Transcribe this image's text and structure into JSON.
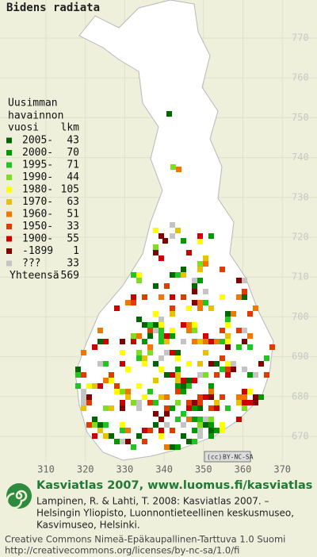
{
  "title": "Bidens radiata",
  "legend": {
    "header": [
      "Uusimman",
      "havainnon",
      "vuosi"
    ],
    "count_header": "lkm",
    "rows": [
      {
        "label": "2005-",
        "count": 43,
        "color": "#006600"
      },
      {
        "label": "2000-",
        "count": 70,
        "color": "#009900"
      },
      {
        "label": "1995-",
        "count": 71,
        "color": "#22c422"
      },
      {
        "label": "1990-",
        "count": 44,
        "color": "#7fdd22"
      },
      {
        "label": "1980-",
        "count": 105,
        "color": "#ffff00"
      },
      {
        "label": "1970-",
        "count": 63,
        "color": "#e8c200"
      },
      {
        "label": "1960-",
        "count": 51,
        "color": "#f07800"
      },
      {
        "label": "1950-",
        "count": 33,
        "color": "#e03c00"
      },
      {
        "label": "1900-",
        "count": 55,
        "color": "#cc0000"
      },
      {
        "label": "-1899",
        "count": 1,
        "color": "#800000"
      },
      {
        "label": "???",
        "count": 33,
        "color": "#c4c4c4"
      }
    ],
    "total_label": "Yhteensä",
    "total": 569
  },
  "map": {
    "yticks": [
      770,
      760,
      750,
      740,
      730,
      720,
      710,
      700,
      690,
      680,
      670
    ],
    "xticks": [
      310,
      320,
      330,
      340,
      350,
      360,
      370
    ]
  },
  "badge": {
    "cc": "(cc)",
    "license": "BY-NC-SA"
  },
  "footer": {
    "heading": "Kasviatlas 2007, www.luomus.fi/kasviatlas",
    "citation": [
      "Lampinen, R. & Lahti, T. 2008: Kasviatlas 2007. –",
      "Helsingin Yliopisto, Luonnontieteellinen keskusmuseo,",
      "Kasvimuseo, Helsinki."
    ],
    "license": [
      "Creative Commons Nimeä-Epäkaupallinen-Tarttuva 1.0 Suomi",
      "http://creativecommons.org/licenses/by-nc-sa/1.0/fi"
    ]
  }
}
